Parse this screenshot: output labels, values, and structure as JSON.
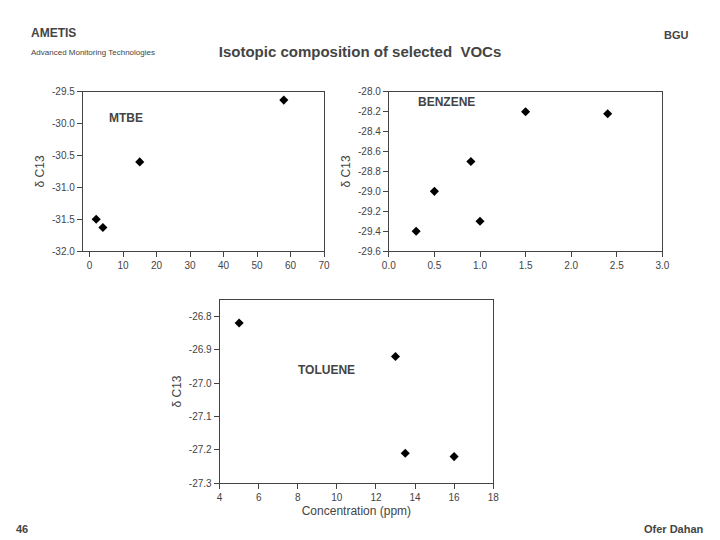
{
  "title": "Isotopic composition of selected  VOCs",
  "annotations": [
    "AMETIS",
    "Advanced Monitoring Technologies",
    "BGU",
    "46",
    "Ofer Dahan"
  ],
  "chart_data": [
    {
      "type": "scatter",
      "annotations": [
        "MTBE"
      ],
      "ylabel": "δ C13",
      "x": [
        2,
        4,
        15,
        58
      ],
      "values": [
        -31.5,
        -31.63,
        -30.6,
        -29.63
      ],
      "color": "black",
      "marker": "diamond",
      "grid": false,
      "xlim": [
        -2,
        70
      ],
      "ylim": [
        -32.0,
        -29.5
      ],
      "xticks": [
        0,
        10,
        20,
        30,
        40,
        50,
        60,
        70
      ],
      "yticks": [
        {
          "value": -32.0,
          "label": "-32.0"
        },
        -31.5,
        {
          "value": -31.0,
          "label": "-31.0"
        },
        -30.5,
        {
          "value": -30.0,
          "label": "-30.0"
        },
        -29.5
      ]
    },
    {
      "type": "scatter",
      "annotations": [
        "BENZENE"
      ],
      "ylabel": "δ C13",
      "x": [
        0.3,
        0.5,
        0.9,
        1.0,
        1.5,
        2.4
      ],
      "values": [
        -29.4,
        -29.0,
        -28.7,
        -29.3,
        -28.2,
        -28.22
      ],
      "color": "black",
      "marker": "diamond",
      "grid": false,
      "xlim": [
        0.0,
        3.0
      ],
      "ylim": [
        -29.6,
        -28.0
      ],
      "xticks": [
        {
          "value": 0.0,
          "label": "0.0"
        },
        0.5,
        {
          "value": 1.0,
          "label": "1.0"
        },
        1.5,
        {
          "value": 2.0,
          "label": "2.0"
        },
        2.5,
        {
          "value": 3.0,
          "label": "3.0"
        }
      ],
      "yticks": [
        -29.6,
        -29.4,
        -29.2,
        {
          "value": -29.0,
          "label": "-29.0"
        },
        -28.8,
        -28.6,
        -28.4,
        -28.2,
        {
          "value": -28.0,
          "label": "-28.0"
        }
      ]
    },
    {
      "type": "scatter",
      "annotations": [
        "TOLUENE"
      ],
      "ylabel": "δ C13",
      "xlabel": "Concentration (ppm)",
      "x": [
        5,
        13,
        13.5,
        16
      ],
      "values": [
        -26.82,
        -26.92,
        -27.21,
        -27.22
      ],
      "color": "black",
      "marker": "diamond",
      "grid": false,
      "xlim": [
        4,
        18
      ],
      "ylim": [
        -27.3,
        -26.75
      ],
      "xticks": [
        4,
        6,
        8,
        10,
        12,
        14,
        16,
        18
      ],
      "yticks": [
        -27.3,
        -27.2,
        -27.1,
        {
          "value": -27.0,
          "label": "-27.0"
        },
        -26.9,
        -26.8
      ]
    }
  ]
}
